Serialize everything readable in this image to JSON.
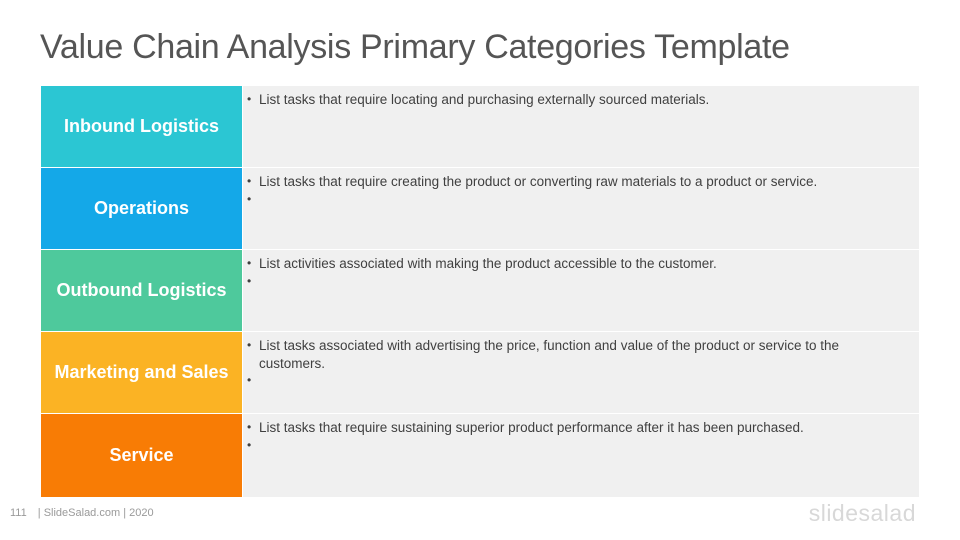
{
  "title": "Value Chain Analysis Primary Categories Template",
  "rows": [
    {
      "label": "Inbound Logistics",
      "color": "#2bc6d3",
      "bullets": [
        "List tasks that require locating and purchasing externally sourced materials."
      ]
    },
    {
      "label": "Operations",
      "color": "#14a8e8",
      "bullets": [
        "List tasks that require creating the product or converting raw materials to a product or service.",
        ""
      ]
    },
    {
      "label": "Outbound Logistics",
      "color": "#4ec99c",
      "bullets": [
        "List activities associated with making the product accessible to the customer.",
        ""
      ]
    },
    {
      "label": "Marketing and Sales",
      "color": "#fbb324",
      "bullets": [
        "List tasks associated with advertising the price, function and value of the product or service to the customers.",
        ""
      ]
    },
    {
      "label": "Service",
      "color": "#f87c05",
      "bullets": [
        "List tasks that require sustaining superior product performance after it has been purchased.",
        ""
      ]
    }
  ],
  "footer": {
    "page_number": "111",
    "credit": "| SlideSalad.com | 2020"
  },
  "brand": "slidesalad"
}
